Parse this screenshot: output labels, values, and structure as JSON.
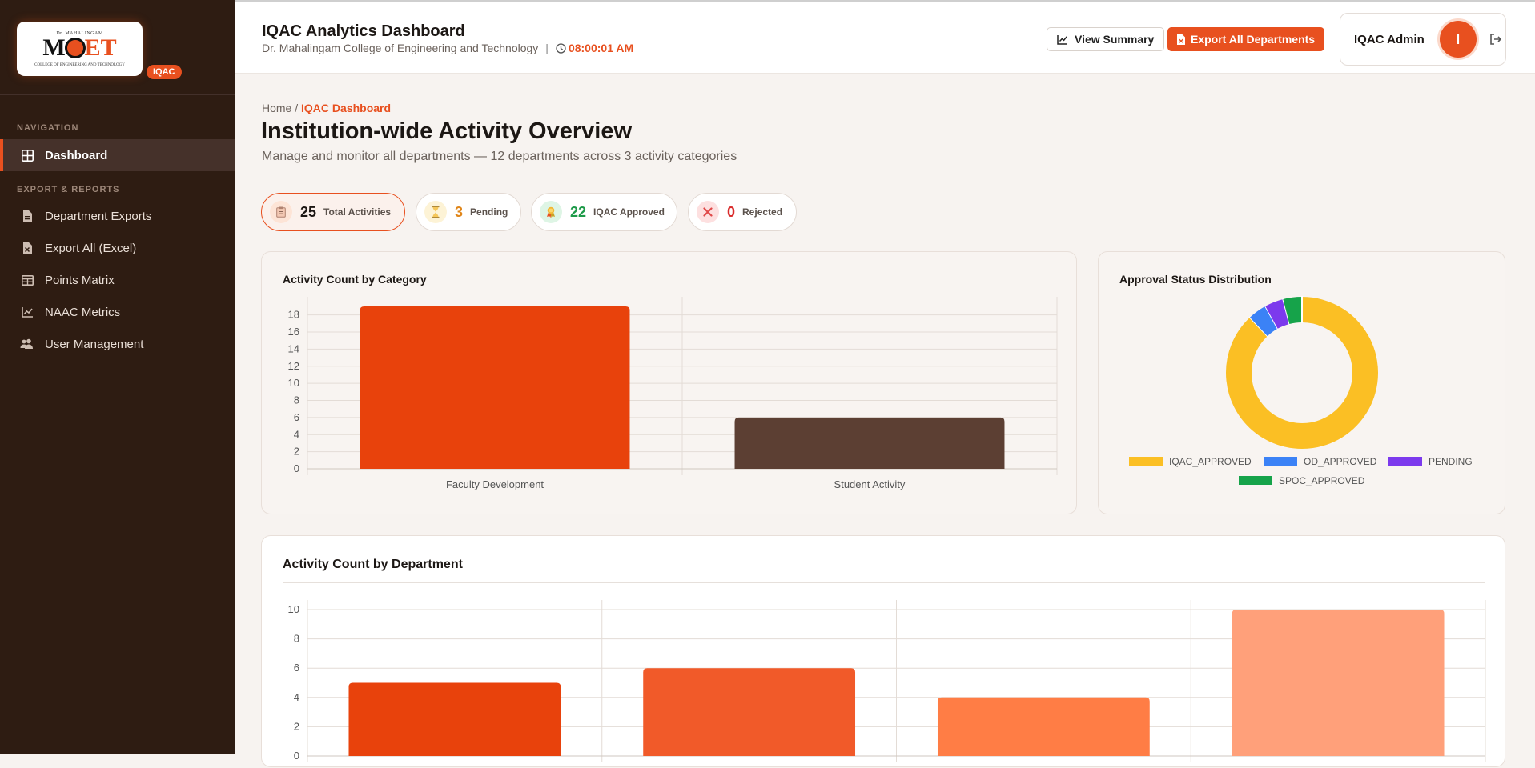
{
  "sidebar": {
    "logo": {
      "top": "Dr. MAHALINGAM",
      "main_left": "M",
      "main_right": "ET",
      "sub": "COLLEGE OF ENGINEERING AND TECHNOLOGY"
    },
    "badge": "IQAC",
    "nav_section": "NAVIGATION",
    "reports_section": "EXPORT & REPORTS",
    "items": [
      {
        "label": "Dashboard",
        "icon": "grid-icon",
        "active": true
      },
      {
        "label": "Department Exports",
        "icon": "file-icon"
      },
      {
        "label": "Export All (Excel)",
        "icon": "excel-file-icon"
      },
      {
        "label": "Points Matrix",
        "icon": "table-icon"
      },
      {
        "label": "NAAC Metrics",
        "icon": "line-chart-icon"
      },
      {
        "label": "User Management",
        "icon": "users-icon"
      }
    ]
  },
  "header": {
    "title": "IQAC Analytics Dashboard",
    "subtitle": "Dr. Mahalingam College of Engineering and Technology",
    "time": "08:00:01 AM",
    "view_summary": "View Summary",
    "export_all": "Export All Departments",
    "user_name": "IQAC Admin",
    "avatar_letter": "I"
  },
  "breadcrumb": {
    "home": "Home",
    "sep": "/",
    "current": "IQAC Dashboard"
  },
  "page": {
    "title": "Institution-wide Activity Overview",
    "subtitle": "Manage and monitor all departments — 12 departments across 3 activity categories"
  },
  "stats": [
    {
      "value": "25",
      "label": "Total Activities",
      "color": "#1c1714",
      "icon": "clipboard-icon"
    },
    {
      "value": "3",
      "label": "Pending",
      "color": "#e0861a",
      "icon": "hourglass-icon"
    },
    {
      "value": "22",
      "label": "IQAC Approved",
      "color": "#1e9a49",
      "icon": "badge-icon"
    },
    {
      "value": "0",
      "label": "Rejected",
      "color": "#d92a2a",
      "icon": "x-icon"
    }
  ],
  "chart_data": [
    {
      "type": "bar",
      "title": "Activity Count by Category",
      "categories": [
        "Faculty Development",
        "Student Activity"
      ],
      "values": [
        19,
        6
      ],
      "colors": [
        "#e8420c",
        "#5c3f33"
      ],
      "ylim": [
        0,
        19
      ],
      "yticks": [
        0,
        2,
        4,
        6,
        8,
        10,
        12,
        14,
        16,
        18
      ]
    },
    {
      "type": "pie",
      "title": "Approval Status Distribution",
      "labels": [
        "IQAC_APPROVED",
        "OD_APPROVED",
        "PENDING",
        "SPOC_APPROVED"
      ],
      "values": [
        22,
        1,
        1,
        1
      ],
      "colors": [
        "#fbbf24",
        "#3b82f6",
        "#7c3aed",
        "#16a34a"
      ]
    },
    {
      "type": "bar",
      "title": "Activity Count by Department",
      "categories": [
        "",
        "",
        "",
        ""
      ],
      "values": [
        5,
        6,
        4,
        10
      ],
      "colors": [
        "#e8420c",
        "#f15a29",
        "#ff7d45",
        "#ffa07a"
      ],
      "ylim": [
        0,
        10
      ],
      "yticks": [
        0,
        2,
        4,
        6,
        8,
        10
      ]
    }
  ]
}
